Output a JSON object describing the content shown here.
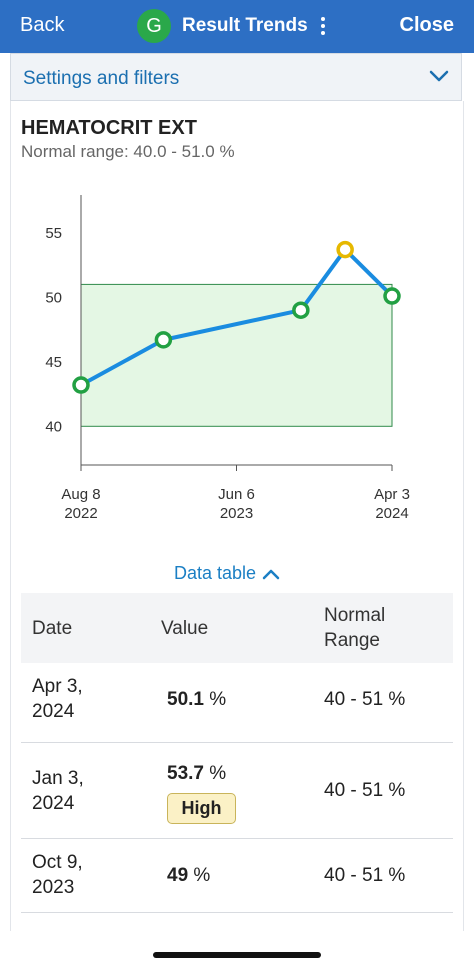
{
  "header": {
    "back_label": "Back",
    "avatar_letter": "G",
    "title": "Result Trends",
    "close_label": "Close"
  },
  "settings": {
    "label": "Settings and filters"
  },
  "test": {
    "name": "HEMATOCRIT EXT",
    "normal_range_text": "Normal range: 40.0 - 51.0 %"
  },
  "chart_data": {
    "type": "line",
    "y_ticks": [
      "55",
      "50",
      "45",
      "40"
    ],
    "x_ticks": [
      {
        "line1": "Aug 8",
        "line2": "2022",
        "date": "2022-08-08"
      },
      {
        "line1": "Jun 6",
        "line2": "2023",
        "date": "2023-06-06"
      },
      {
        "line1": "Apr 3",
        "line2": "2024",
        "date": "2024-04-03"
      }
    ],
    "ylim": [
      37,
      57
    ],
    "xlim": [
      "2022-08-08",
      "2024-04-03"
    ],
    "normal_band": [
      40,
      51
    ],
    "points": [
      {
        "date": "2022-08-08",
        "value": 43.2,
        "status": "normal"
      },
      {
        "date": "2023-01-15",
        "value": 46.7,
        "status": "normal"
      },
      {
        "date": "2023-10-09",
        "value": 49,
        "status": "normal"
      },
      {
        "date": "2024-01-03",
        "value": 53.7,
        "status": "high"
      },
      {
        "date": "2024-04-03",
        "value": 50.1,
        "status": "normal"
      }
    ],
    "colors": {
      "line": "#1a8ce0",
      "normal_point": "#22a043",
      "high_point": "#e6b800",
      "band_fill": "#e4f7e4",
      "band_stroke": "#2f8a4a"
    }
  },
  "data_table": {
    "toggle_label": "Data table",
    "headers": {
      "date": "Date",
      "value": "Value",
      "range_line1": "Normal",
      "range_line2": "Range"
    },
    "rows": [
      {
        "date_line1": "Apr 3,",
        "date_line2": "2024",
        "value": "50.1",
        "unit": "%",
        "range": "40 - 51 %"
      },
      {
        "date_line1": "Jan 3,",
        "date_line2": "2024",
        "value": "53.7",
        "unit": "%",
        "flag": "High",
        "range": "40 - 51 %"
      },
      {
        "date_line1": "Oct 9,",
        "date_line2": "2023",
        "value": "49",
        "unit": "%",
        "range": "40 - 51 %"
      }
    ]
  }
}
